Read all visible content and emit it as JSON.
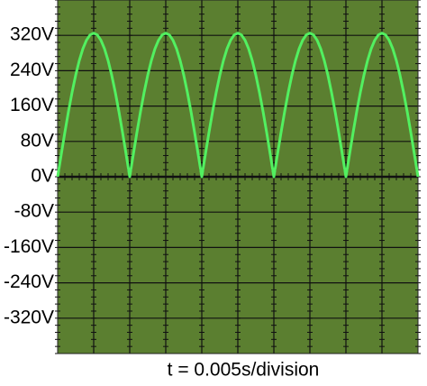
{
  "chart_data": {
    "type": "line",
    "xlabel": "t = 0.005s/division",
    "x": [
      0,
      0.0005,
      0.001,
      0.0015,
      0.002,
      0.0025,
      0.003,
      0.0035,
      0.004,
      0.0045,
      0.005,
      0.0055,
      0.006,
      0.0065,
      0.007,
      0.0075,
      0.008,
      0.0085,
      0.009,
      0.0095,
      0.01,
      0.0105,
      0.011,
      0.0115,
      0.012,
      0.0125,
      0.013,
      0.0135,
      0.014,
      0.0145,
      0.015,
      0.0155,
      0.016,
      0.0165,
      0.017,
      0.0175,
      0.018,
      0.0185,
      0.019,
      0.0195,
      0.02,
      0.0205,
      0.021,
      0.0215,
      0.022,
      0.0225,
      0.023,
      0.0235,
      0.024,
      0.0245,
      0.025,
      0.0255,
      0.026,
      0.0265,
      0.027,
      0.0275,
      0.028,
      0.0285,
      0.029,
      0.0295,
      0.03,
      0.0305,
      0.031,
      0.0315,
      0.032,
      0.0325,
      0.033,
      0.0335,
      0.034,
      0.0345,
      0.035,
      0.0355,
      0.036,
      0.0365,
      0.037,
      0.0375,
      0.038,
      0.0385,
      0.039,
      0.0395,
      0.04,
      0.0405,
      0.041,
      0.0415,
      0.042,
      0.0425,
      0.043,
      0.0435,
      0.044,
      0.0445,
      0.045,
      0.0455,
      0.046,
      0.0465,
      0.047,
      0.0475,
      0.048,
      0.0485,
      0.049,
      0.0495,
      0.05
    ],
    "series": [
      {
        "color": "#52f060",
        "values": [
          0,
          50.8,
          100.4,
          147.6,
          191.0,
          229.8,
          262.9,
          289.6,
          309.1,
          321.0,
          325,
          321.0,
          309.1,
          289.6,
          262.9,
          229.8,
          191.0,
          147.6,
          100.4,
          50.8,
          0,
          50.8,
          100.4,
          147.6,
          191.0,
          229.8,
          262.9,
          289.6,
          309.1,
          321.0,
          325,
          321.0,
          309.1,
          289.6,
          262.9,
          229.8,
          191.0,
          147.6,
          100.4,
          50.8,
          0,
          50.8,
          100.4,
          147.6,
          191.0,
          229.8,
          262.9,
          289.6,
          309.1,
          321.0,
          325,
          321.0,
          309.1,
          289.6,
          262.9,
          229.8,
          191.0,
          147.6,
          100.4,
          50.8,
          0,
          50.8,
          100.4,
          147.6,
          191.0,
          229.8,
          262.9,
          289.6,
          309.1,
          321.0,
          325,
          321.0,
          309.1,
          289.6,
          262.9,
          229.8,
          191.0,
          147.6,
          100.4,
          50.8,
          0,
          50.8,
          100.4,
          147.6,
          191.0,
          229.8,
          262.9,
          289.6,
          309.1,
          321.0,
          325,
          321.0,
          309.1,
          289.6,
          262.9,
          229.8,
          191.0,
          147.6,
          100.4,
          50.8,
          0
        ]
      }
    ],
    "xlim": [
      0,
      0.05
    ],
    "xticks": [
      0.005,
      0.01,
      0.015,
      0.02,
      0.025,
      0.03,
      0.035,
      0.04,
      0.045
    ],
    "ylim": [
      -400,
      400
    ],
    "yticks": [
      {
        "value": 320,
        "label": "320V"
      },
      {
        "value": 240,
        "label": "240V"
      },
      {
        "value": 160,
        "label": "160V"
      },
      {
        "value": 80,
        "label": "80V"
      },
      {
        "value": 0,
        "label": "0V"
      },
      {
        "value": -80,
        "label": "-80V"
      },
      {
        "value": -160,
        "label": "-160V"
      },
      {
        "value": -240,
        "label": "-240V"
      },
      {
        "value": -320,
        "label": "-320V"
      }
    ],
    "grid": true,
    "background": "#5b7f30"
  }
}
